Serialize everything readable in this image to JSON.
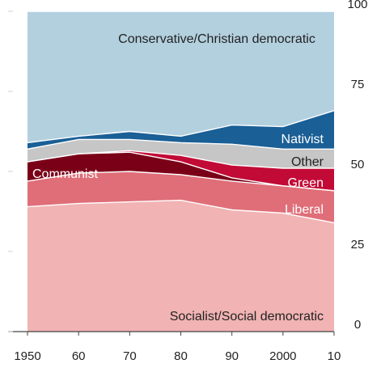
{
  "chart_data": {
    "type": "area",
    "stacked": true,
    "x": [
      1950,
      1960,
      1970,
      1980,
      1990,
      2000,
      2010
    ],
    "x_tick_labels": [
      "1950",
      "60",
      "70",
      "80",
      "90",
      "2000",
      "10"
    ],
    "y_ticks": [
      0,
      25,
      50,
      75,
      100
    ],
    "ylim": [
      0,
      100
    ],
    "y_axis_position": "right",
    "grid": false,
    "series": [
      {
        "name": "Socialist/Social democratic",
        "color": "#f1b3b3",
        "values": [
          39,
          40,
          40.5,
          41,
          38,
          37,
          34
        ]
      },
      {
        "name": "Liberal",
        "color": "#df6e78",
        "values": [
          8,
          9.5,
          9.5,
          8,
          9,
          8.5,
          10
        ]
      },
      {
        "name": "Communist",
        "color": "#7a0018",
        "values": [
          6,
          6,
          6,
          4,
          1,
          0,
          0
        ]
      },
      {
        "name": "Green",
        "color": "#c20a36",
        "values": [
          0,
          0,
          0.5,
          2,
          4,
          5.5,
          7
        ]
      },
      {
        "name": "Other",
        "color": "#c6c6c6",
        "values": [
          4,
          4.5,
          3.5,
          4,
          6.5,
          6,
          6
        ]
      },
      {
        "name": "Nativist",
        "color": "#1a5f96",
        "values": [
          2,
          1,
          2.5,
          2,
          6,
          7,
          12
        ]
      },
      {
        "name": "Conservative/Christian democratic",
        "color": "#b3d0df",
        "values": [
          41,
          39,
          37.5,
          39,
          35.5,
          36,
          31
        ]
      }
    ]
  },
  "labels": {
    "conservative": "Conservative/Christian democratic",
    "nativist": "Nativist",
    "other": "Other",
    "green": "Green",
    "communist": "Communist",
    "liberal": "Liberal",
    "socialist": "Socialist/Social democratic"
  }
}
